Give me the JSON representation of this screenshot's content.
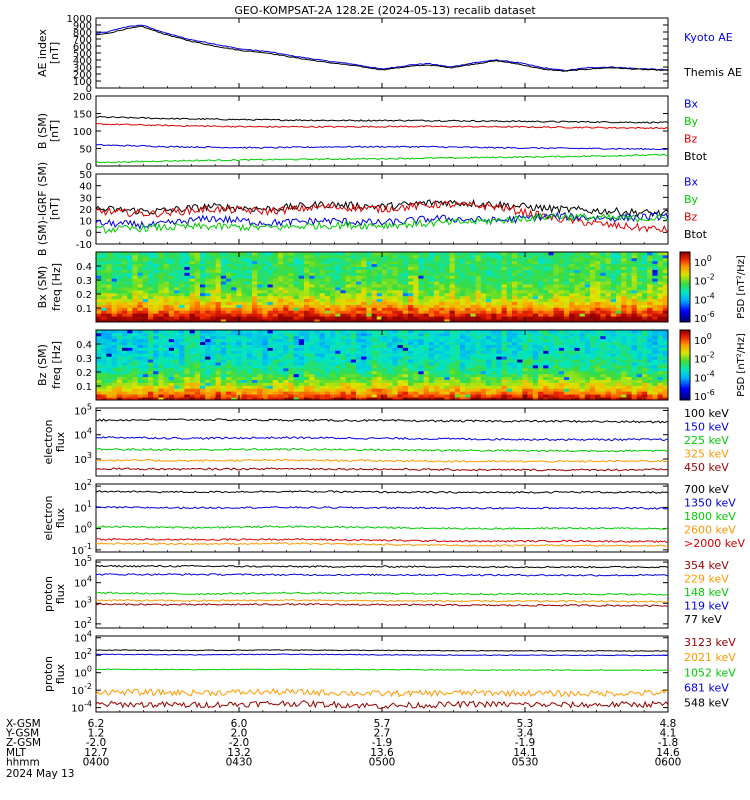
{
  "title": "GEO-KOMPSAT-2A 128.2E (2024-05-13) recalib dataset",
  "colors": {
    "black": "#000000",
    "blue": "#0000dd",
    "green": "#00cc00",
    "red": "#dd0000",
    "orange": "#ff9900",
    "darkred": "#990000",
    "paleblue": "#5555ff"
  },
  "time_axis": {
    "ticks": [
      "0400",
      "0430",
      "0500",
      "0530",
      "0600"
    ],
    "date_label": "2024 May 13"
  },
  "ephemeris": {
    "rows": [
      {
        "label": "X-GSM",
        "values": [
          "6.2",
          "6.0",
          "5.7",
          "5.3",
          "4.8"
        ]
      },
      {
        "label": "Y-GSM",
        "values": [
          "1.2",
          "2.0",
          "2.7",
          "3.4",
          "4.1"
        ]
      },
      {
        "label": "Z-GSM",
        "values": [
          "-2.0",
          "-2.0",
          "-1.9",
          "-1.9",
          "-1.8"
        ]
      },
      {
        "label": "MLT",
        "values": [
          "12.7",
          "13.2",
          "13.6",
          "14.1",
          "14.6"
        ]
      },
      {
        "label": "hhmm",
        "values": [
          "0400",
          "0430",
          "0500",
          "0530",
          "0600"
        ]
      }
    ]
  },
  "chart_data": [
    {
      "type": "line",
      "ylabel": "AE index [nT]",
      "ylim": [
        0,
        1000
      ],
      "yticks": [
        "0",
        "100",
        "200",
        "300",
        "400",
        "500",
        "600",
        "700",
        "800",
        "900",
        "1000"
      ],
      "legend": [
        {
          "label": "Kyoto AE",
          "color": "#0000dd"
        },
        {
          "label": "Themis AE",
          "color": "#000000"
        }
      ],
      "series": [
        {
          "name": "Kyoto AE",
          "color": "#0000dd",
          "x": [
            0,
            0.02,
            0.05,
            0.08,
            0.12,
            0.16,
            0.2,
            0.25,
            0.3,
            0.35,
            0.4,
            0.45,
            0.5,
            0.55,
            0.58,
            0.62,
            0.66,
            0.7,
            0.74,
            0.78,
            0.82,
            0.86,
            0.9,
            0.94,
            1.0
          ],
          "y": [
            780,
            800,
            870,
            900,
            790,
            700,
            640,
            560,
            520,
            450,
            390,
            340,
            270,
            330,
            350,
            300,
            360,
            400,
            360,
            290,
            250,
            290,
            300,
            280,
            260
          ]
        },
        {
          "name": "Themis AE",
          "color": "#000000",
          "x": [
            0,
            0.02,
            0.05,
            0.08,
            0.12,
            0.16,
            0.2,
            0.25,
            0.3,
            0.35,
            0.4,
            0.45,
            0.5,
            0.55,
            0.58,
            0.62,
            0.66,
            0.7,
            0.74,
            0.78,
            0.82,
            0.86,
            0.9,
            0.94,
            1.0
          ],
          "y": [
            760,
            780,
            840,
            880,
            770,
            680,
            610,
            540,
            500,
            430,
            370,
            320,
            260,
            310,
            330,
            290,
            340,
            390,
            340,
            270,
            240,
            270,
            290,
            270,
            250
          ]
        }
      ]
    },
    {
      "type": "line",
      "ylabel": "B (SM) [nT]",
      "ylim": [
        0,
        200
      ],
      "yticks": [
        "0",
        "50",
        "100",
        "150",
        "200"
      ],
      "legend": [
        {
          "label": "Bx",
          "color": "#0000dd"
        },
        {
          "label": "By",
          "color": "#00cc00"
        },
        {
          "label": "Bz",
          "color": "#dd0000"
        },
        {
          "label": "Btot",
          "color": "#000000"
        }
      ],
      "series": [
        {
          "name": "Btot",
          "color": "#000000",
          "level": [
            140,
            135,
            132,
            130,
            130,
            128,
            126,
            124
          ]
        },
        {
          "name": "Bz",
          "color": "#dd0000",
          "level": [
            120,
            115,
            112,
            112,
            113,
            112,
            110,
            108
          ]
        },
        {
          "name": "Bx",
          "color": "#0000dd",
          "level": [
            60,
            55,
            52,
            55,
            55,
            52,
            50,
            48
          ]
        },
        {
          "name": "By",
          "color": "#00cc00",
          "level": [
            10,
            15,
            18,
            20,
            22,
            25,
            28,
            32
          ]
        }
      ]
    },
    {
      "type": "line",
      "ylabel": "B (SM)-IGRF (SM) [nT]",
      "ylim": [
        -10,
        50
      ],
      "yticks": [
        "-10",
        "0",
        "10",
        "20",
        "30",
        "40",
        "50"
      ],
      "legend": [
        {
          "label": "Bx",
          "color": "#0000dd"
        },
        {
          "label": "By",
          "color": "#00cc00"
        },
        {
          "label": "Bz",
          "color": "#dd0000"
        },
        {
          "label": "Btot",
          "color": "#000000"
        }
      ],
      "series": [
        {
          "name": "Btot",
          "color": "#000000",
          "level": [
            20,
            18,
            22,
            20,
            24,
            22,
            26,
            24,
            20,
            18,
            16
          ]
        },
        {
          "name": "Bz",
          "color": "#dd0000",
          "level": [
            18,
            16,
            20,
            18,
            22,
            20,
            24,
            22,
            12,
            6,
            2
          ]
        },
        {
          "name": "Bx",
          "color": "#0000dd",
          "level": [
            8,
            6,
            12,
            8,
            10,
            8,
            12,
            10,
            14,
            12,
            14
          ]
        },
        {
          "name": "By",
          "color": "#00cc00",
          "level": [
            2,
            4,
            5,
            4,
            6,
            6,
            8,
            10,
            14,
            12,
            12
          ]
        }
      ]
    },
    {
      "type": "heatmap",
      "ylabel": "Bx (SM)",
      "ylabel2": "freq [Hz]",
      "yticks": [
        "0.1",
        "0.2",
        "0.3",
        "0.4"
      ],
      "colorbar": {
        "label": "PSD [nT²/Hz]",
        "ticks": [
          "10⁰",
          "10⁻²",
          "10⁻⁴",
          "10⁻⁶"
        ],
        "top": "10⁰",
        "tick_exp": [
          "0",
          "-2",
          "-4",
          "-6"
        ]
      }
    },
    {
      "type": "heatmap",
      "ylabel": "Bz (SM)",
      "ylabel2": "freq [Hz]",
      "yticks": [
        "0.1",
        "0.2",
        "0.3",
        "0.4"
      ],
      "colorbar": {
        "label": "PSD [nT²/Hz]",
        "ticks": [
          "10⁰",
          "10⁻²",
          "10⁻⁴",
          "10⁻⁶"
        ],
        "tick_exp": [
          "0",
          "-2",
          "-4",
          "-6"
        ]
      }
    },
    {
      "type": "line",
      "ylabel": "electron flux",
      "log": true,
      "yticks_exp": [
        "3",
        "4",
        "5"
      ],
      "legend": [
        {
          "label": "100 keV",
          "color": "#000000"
        },
        {
          "label": "150 keV",
          "color": "#0000dd"
        },
        {
          "label": "225 keV",
          "color": "#00cc00"
        },
        {
          "label": "325 keV",
          "color": "#ff9900"
        },
        {
          "label": "450 keV",
          "color": "#990000"
        }
      ],
      "series": [
        {
          "name": "100 keV",
          "color": "#000000",
          "level": [
            4.6,
            4.62,
            4.6,
            4.58,
            4.56,
            4.55,
            4.52
          ]
        },
        {
          "name": "150 keV",
          "color": "#0000dd",
          "level": [
            3.9,
            3.85,
            3.88,
            3.85,
            3.82,
            3.8,
            3.8
          ]
        },
        {
          "name": "225 keV",
          "color": "#00cc00",
          "level": [
            3.4,
            3.38,
            3.4,
            3.38,
            3.35,
            3.33,
            3.35
          ]
        },
        {
          "name": "325 keV",
          "color": "#ff9900",
          "level": [
            2.95,
            2.93,
            2.95,
            2.93,
            2.9,
            2.9,
            2.92
          ]
        },
        {
          "name": "450 keV",
          "color": "#990000",
          "level": [
            2.6,
            2.58,
            2.6,
            2.58,
            2.55,
            2.55,
            2.56
          ]
        }
      ]
    },
    {
      "type": "line",
      "ylabel": "electron flux",
      "log": true,
      "yticks_exp": [
        "-1",
        "0",
        "1",
        "2"
      ],
      "legend": [
        {
          "label": "700 keV",
          "color": "#000000"
        },
        {
          "label": "1350 keV",
          "color": "#0000dd"
        },
        {
          "label": "1800 keV",
          "color": "#00cc00"
        },
        {
          "label": "2600 keV",
          "color": "#ff9900"
        },
        {
          "label": ">2000 keV",
          "color": "#dd0000"
        }
      ],
      "series": [
        {
          "name": "700 keV",
          "color": "#000000",
          "level": [
            1.75,
            1.72,
            1.75,
            1.72,
            1.7,
            1.72,
            1.7
          ]
        },
        {
          "name": "1350 keV",
          "color": "#0000dd",
          "level": [
            1.0,
            0.98,
            1.0,
            0.98,
            0.96,
            0.97,
            0.95
          ]
        },
        {
          "name": "1800 keV",
          "color": "#00cc00",
          "level": [
            0.1,
            0.05,
            0.1,
            0.05,
            0.0,
            0.02,
            0.0
          ]
        },
        {
          "name": ">2000 keV",
          "color": "#dd0000",
          "level": [
            -0.5,
            -0.52,
            -0.5,
            -0.55,
            -0.6,
            -0.58,
            -0.62
          ]
        },
        {
          "name": "2600 keV",
          "color": "#ff9900",
          "level": [
            -0.7,
            -0.72,
            -0.7,
            -0.75,
            -0.8,
            -0.78,
            -0.82
          ]
        }
      ]
    },
    {
      "type": "line",
      "ylabel": "proton flux",
      "log": true,
      "yticks_exp": [
        "2",
        "3",
        "4",
        "5"
      ],
      "legend": [
        {
          "label": "354 keV",
          "color": "#990000"
        },
        {
          "label": "229 keV",
          "color": "#ff9900"
        },
        {
          "label": "148 keV",
          "color": "#00cc00"
        },
        {
          "label": "119 keV",
          "color": "#0000dd"
        },
        {
          "label": "77 keV",
          "color": "#000000"
        }
      ],
      "series": [
        {
          "name": "77 keV",
          "color": "#000000",
          "level": [
            4.8,
            4.8,
            4.78,
            4.78,
            4.77,
            4.76,
            4.76
          ]
        },
        {
          "name": "119 keV",
          "color": "#0000dd",
          "level": [
            4.4,
            4.4,
            4.38,
            4.38,
            4.37,
            4.36,
            4.36
          ]
        },
        {
          "name": "148 keV",
          "color": "#00cc00",
          "level": [
            3.5,
            3.45,
            3.5,
            3.48,
            3.45,
            3.45,
            3.42
          ]
        },
        {
          "name": "229 keV",
          "color": "#ff9900",
          "level": [
            3.15,
            3.12,
            3.15,
            3.12,
            3.1,
            3.1,
            3.08
          ]
        },
        {
          "name": "354 keV",
          "color": "#990000",
          "level": [
            2.95,
            2.93,
            2.95,
            2.93,
            2.9,
            2.9,
            2.88
          ]
        }
      ]
    },
    {
      "type": "line",
      "ylabel": "proton flux",
      "log": true,
      "yticks_exp": [
        "-4",
        "-2",
        "0",
        "2",
        "4"
      ],
      "legend": [
        {
          "label": "3123 keV",
          "color": "#990000"
        },
        {
          "label": "2021 keV",
          "color": "#ff9900"
        },
        {
          "label": "1052 keV",
          "color": "#00cc00"
        },
        {
          "label": "681 keV",
          "color": "#0000dd"
        },
        {
          "label": "548 keV",
          "color": "#000000"
        }
      ],
      "series": [
        {
          "name": "548 keV",
          "color": "#000000",
          "level": [
            2.6,
            2.55,
            2.6,
            2.55,
            2.5,
            2.5,
            2.48
          ]
        },
        {
          "name": "681 keV",
          "color": "#0000dd",
          "level": [
            2.1,
            2.05,
            2.1,
            2.05,
            2.0,
            2.0,
            1.98
          ]
        },
        {
          "name": "1052 keV",
          "color": "#00cc00",
          "level": [
            0.4,
            0.35,
            0.4,
            0.35,
            0.3,
            0.3,
            0.28
          ]
        },
        {
          "name": "2021 keV",
          "color": "#ff9900",
          "level": [
            -2.2,
            -2.3,
            -2.2,
            -2.4,
            -2.3,
            -2.4,
            -2.3
          ]
        },
        {
          "name": "3123 keV",
          "color": "#990000",
          "level": [
            -3.6,
            -3.7,
            -3.5,
            -3.8,
            -3.6,
            -3.7,
            -3.6
          ]
        }
      ]
    }
  ]
}
